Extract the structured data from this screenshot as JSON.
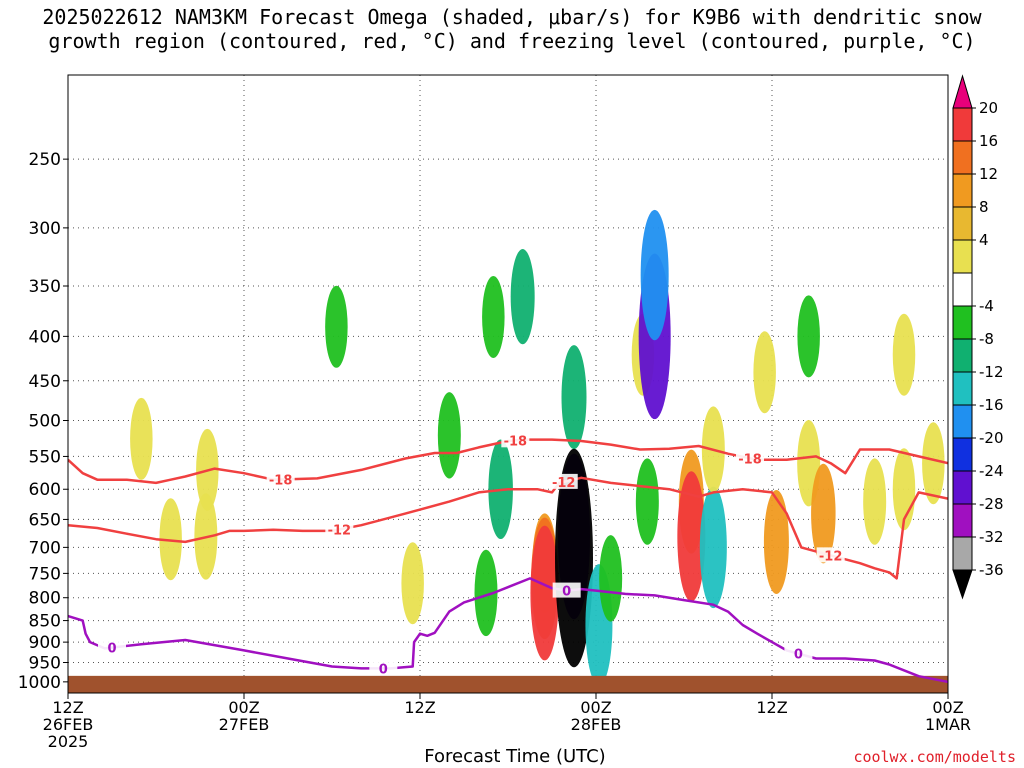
{
  "title": {
    "line1": "2025022612 NAM3KM Forecast Omega (shaded, μbar/s) for K9B6 with dendritic snow",
    "line2": "growth region (contoured, red, °C) and freezing level (contoured, purple, °C)"
  },
  "xlabel": "Forecast Time (UTC)",
  "credit": "coolwx.com/modelts",
  "chart_data": {
    "type": "heatmap",
    "title": "2025022612 NAM3KM Forecast Omega (shaded, μbar/s) for K9B6 with dendritic snow growth region (contoured, red, °C) and freezing level (contoured, purple, °C)",
    "xlabel": "Forecast Time (UTC)",
    "ylabel": "",
    "x_hours_range": [
      0,
      60
    ],
    "y_pressure_range_hpa": [
      1030,
      200
    ],
    "y_ticks": [
      250,
      300,
      350,
      400,
      450,
      500,
      550,
      600,
      650,
      700,
      750,
      800,
      850,
      900,
      950,
      1000
    ],
    "x_ticks": [
      {
        "hour": 0,
        "lines": [
          "12Z",
          "26FEB",
          "2025"
        ]
      },
      {
        "hour": 12,
        "lines": [
          "00Z",
          "27FEB"
        ]
      },
      {
        "hour": 24,
        "lines": [
          "12Z"
        ]
      },
      {
        "hour": 36,
        "lines": [
          "00Z",
          "28FEB"
        ]
      },
      {
        "hour": 48,
        "lines": [
          "12Z"
        ]
      },
      {
        "hour": 60,
        "lines": [
          "00Z",
          "1MAR"
        ]
      }
    ],
    "grid": true,
    "colorbar": {
      "labels": [
        "20",
        "16",
        "12",
        "8",
        "4",
        "-4",
        "-8",
        "-12",
        "-16",
        "-20",
        "-24",
        "-28",
        "-32",
        "-36"
      ],
      "colors": [
        "#e8007a",
        "#f03a3a",
        "#f07020",
        "#f09a20",
        "#e8b830",
        "#e8e050",
        "#ffffff",
        "#20c020",
        "#10b070",
        "#20c0c0",
        "#2090f0",
        "#1030e0",
        "#6010d0",
        "#a010c0",
        "#a8a8a8",
        "#000000"
      ]
    },
    "omega_cells": [
      {
        "hour": 5,
        "p": 525,
        "value": 5
      },
      {
        "hour": 9.5,
        "p": 570,
        "value": 5
      },
      {
        "hour": 9.4,
        "p": 680,
        "value": 6
      },
      {
        "hour": 7,
        "p": 685,
        "value": 5
      },
      {
        "hour": 18.3,
        "p": 390,
        "value": -5
      },
      {
        "hour": 23.5,
        "p": 770,
        "value": 5
      },
      {
        "hour": 26,
        "p": 520,
        "value": -6
      },
      {
        "hour": 29,
        "p": 380,
        "value": -5
      },
      {
        "hour": 31,
        "p": 360,
        "value": -8
      },
      {
        "hour": 29.5,
        "p": 600,
        "value": -9
      },
      {
        "hour": 28.5,
        "p": 790,
        "value": -6
      },
      {
        "hour": 32.5,
        "p": 730,
        "value": 9
      },
      {
        "hour": 32.5,
        "p": 760,
        "value": 14
      },
      {
        "hour": 32.5,
        "p": 790,
        "value": 17
      },
      {
        "hour": 34.5,
        "p": 470,
        "value": -10
      },
      {
        "hour": 34.5,
        "p": 680,
        "value": -24
      },
      {
        "hour": 34.5,
        "p": 720,
        "value": -36
      },
      {
        "hour": 36.2,
        "p": 860,
        "value": -14
      },
      {
        "hour": 37,
        "p": 760,
        "value": -6
      },
      {
        "hour": 39.2,
        "p": 420,
        "value": 5
      },
      {
        "hour": 40,
        "p": 400,
        "value": -24
      },
      {
        "hour": 40,
        "p": 340,
        "value": -16
      },
      {
        "hour": 39.5,
        "p": 620,
        "value": -6
      },
      {
        "hour": 42.5,
        "p": 620,
        "value": 10
      },
      {
        "hour": 42.5,
        "p": 680,
        "value": 16
      },
      {
        "hour": 44,
        "p": 700,
        "value": -14
      },
      {
        "hour": 44,
        "p": 540,
        "value": 6
      },
      {
        "hour": 47.5,
        "p": 440,
        "value": 5
      },
      {
        "hour": 48.3,
        "p": 690,
        "value": 10
      },
      {
        "hour": 50.5,
        "p": 400,
        "value": -5
      },
      {
        "hour": 50.5,
        "p": 560,
        "value": 6
      },
      {
        "hour": 51.5,
        "p": 640,
        "value": 9
      },
      {
        "hour": 55,
        "p": 620,
        "value": 6
      },
      {
        "hour": 57,
        "p": 420,
        "value": 5
      },
      {
        "hour": 57,
        "p": 600,
        "value": 5
      },
      {
        "hour": 59,
        "p": 560,
        "value": 5
      }
    ],
    "series": [
      {
        "name": "-18",
        "color": "#f04040",
        "label_hours": [
          14.5,
          30.5,
          46.5
        ],
        "x": [
          0,
          1,
          2,
          4,
          6,
          7,
          8,
          10,
          12,
          14,
          17,
          20,
          23,
          25,
          26.5,
          28,
          30,
          31,
          33,
          35,
          37,
          39,
          41,
          43,
          45,
          47,
          49,
          51,
          52,
          53,
          54,
          56,
          58,
          60
        ],
        "y": [
          555,
          575,
          585,
          585,
          590,
          585,
          580,
          568,
          575,
          585,
          583,
          570,
          553,
          545,
          545,
          537,
          528,
          526,
          526,
          528,
          533,
          540,
          539,
          535,
          546,
          555,
          555,
          550,
          560,
          575,
          540,
          540,
          550,
          560
        ]
      },
      {
        "name": "-12",
        "color": "#f04040",
        "label_hours": [
          18.5,
          33.8,
          52
        ],
        "x": [
          0,
          2,
          4,
          6,
          8,
          10,
          11,
          12,
          14,
          16,
          18,
          20,
          23,
          26,
          28,
          30,
          32,
          33,
          33.5,
          35,
          37,
          39,
          41,
          43,
          44,
          46,
          48,
          49,
          50,
          52,
          54,
          55,
          56,
          56.5,
          57,
          58,
          60
        ],
        "y": [
          660,
          665,
          675,
          685,
          690,
          678,
          670,
          670,
          668,
          670,
          670,
          660,
          640,
          620,
          605,
          600,
          600,
          605,
          590,
          582,
          590,
          595,
          600,
          612,
          605,
          600,
          605,
          640,
          700,
          715,
          730,
          740,
          748,
          760,
          650,
          605,
          615
        ]
      },
      {
        "name": "0",
        "color": "#a010c0",
        "label_hours": [
          3,
          21.5,
          34,
          49.8
        ],
        "x": [
          0,
          1,
          1.2,
          1.5,
          2.5,
          5,
          8,
          12,
          15,
          18,
          20,
          22,
          23.5,
          23.6,
          24,
          24.5,
          25,
          26,
          27,
          29,
          31.5,
          33,
          34,
          35,
          36,
          38,
          40,
          42,
          44,
          45,
          46,
          47,
          48,
          49,
          51,
          53,
          55,
          56,
          58,
          60
        ],
        "y": [
          840,
          850,
          880,
          900,
          915,
          905,
          895,
          920,
          940,
          960,
          965,
          965,
          960,
          900,
          880,
          885,
          878,
          830,
          810,
          790,
          760,
          780,
          785,
          782,
          785,
          792,
          795,
          805,
          815,
          830,
          860,
          880,
          900,
          920,
          940,
          940,
          945,
          955,
          985,
          1000
        ]
      }
    ],
    "surface": {
      "color": "#a0522d",
      "pressure_hpa": 1000
    }
  }
}
